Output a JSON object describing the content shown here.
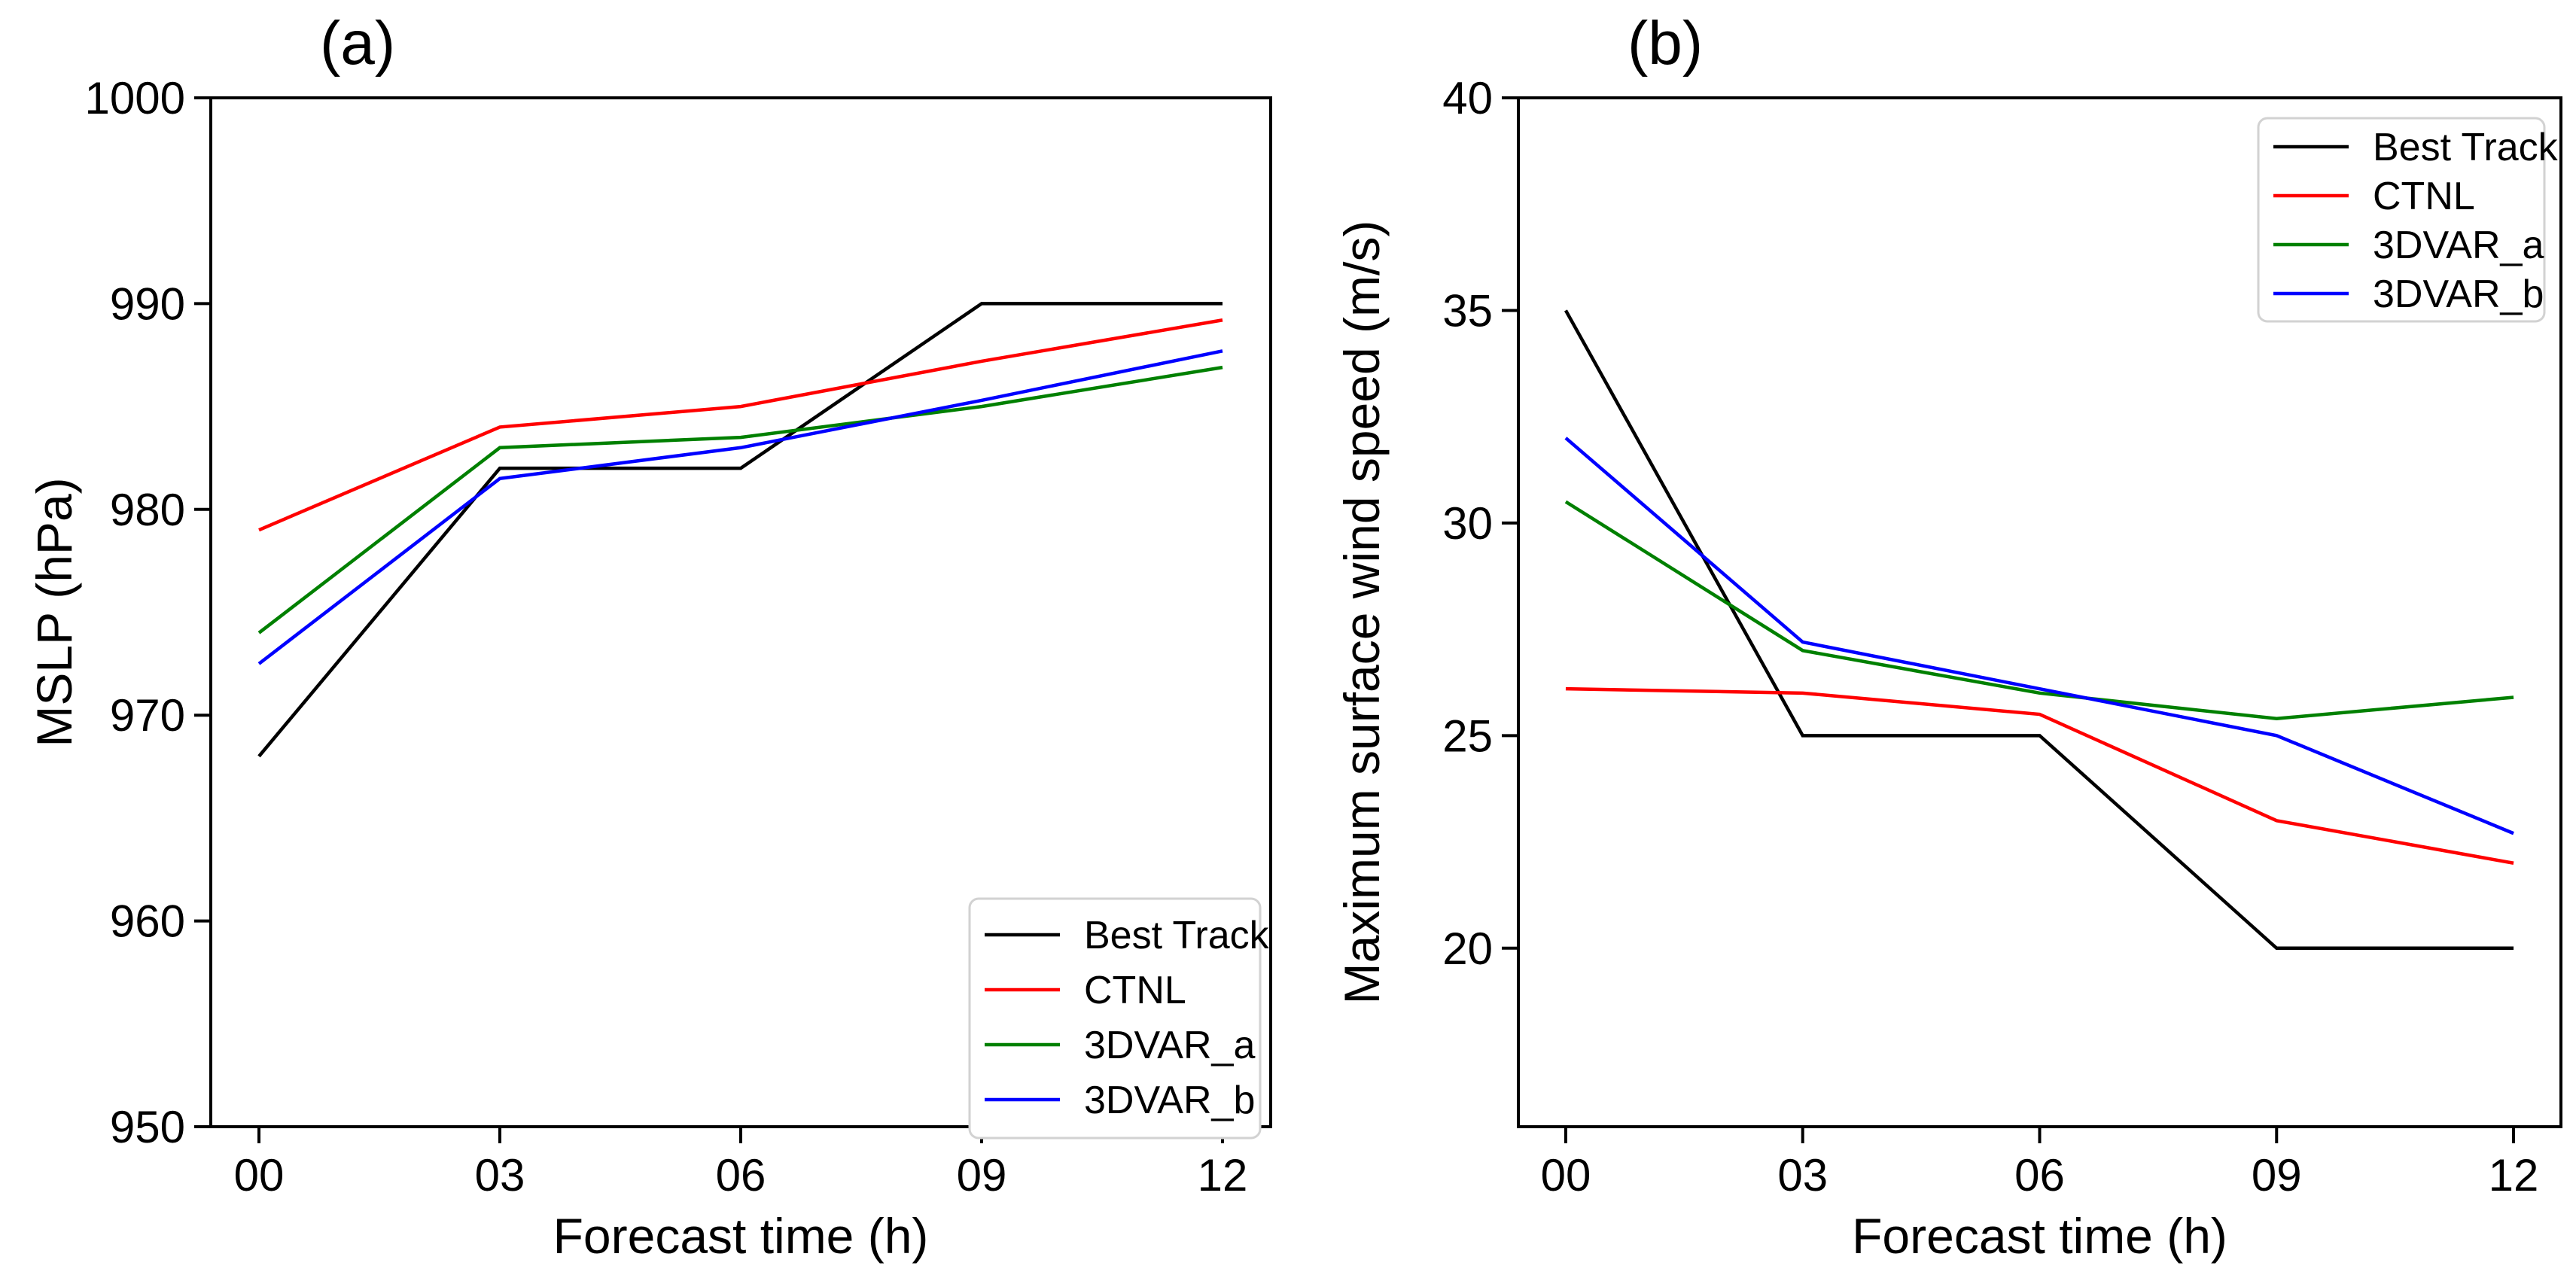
{
  "figure": {
    "background": "#ffffff",
    "colors": {
      "axis": "#000000",
      "legend_border": "#d2d2d2",
      "legend_fill": "#ffffff"
    }
  },
  "chart_data": [
    {
      "id": "a",
      "type": "line",
      "title": "(a)",
      "xlabel": "Forecast time (h)",
      "ylabel": "MSLP (hPa)",
      "x": [
        0,
        3,
        6,
        9,
        12
      ],
      "xtick_labels": [
        "00",
        "03",
        "06",
        "09",
        "12"
      ],
      "yticks": [
        950,
        960,
        970,
        980,
        990,
        1000
      ],
      "ytick_labels": [
        "950",
        "960",
        "970",
        "980",
        "990",
        "1000"
      ],
      "xlim": [
        -0.6,
        12.6
      ],
      "ylim": [
        950,
        1000
      ],
      "grid": false,
      "legend_position": "lower right",
      "series": [
        {
          "name": "Best Track",
          "color": "#000000",
          "values": [
            968,
            982,
            982,
            990,
            990
          ]
        },
        {
          "name": "CTNL",
          "color": "#ff0000",
          "values": [
            979,
            984,
            985,
            987.2,
            989.2
          ]
        },
        {
          "name": "3DVAR_a",
          "color": "#008000",
          "values": [
            974,
            983,
            983.5,
            985,
            986.9
          ]
        },
        {
          "name": "3DVAR_b",
          "color": "#0000ff",
          "values": [
            972.5,
            981.5,
            983,
            985.3,
            987.7
          ]
        }
      ]
    },
    {
      "id": "b",
      "type": "line",
      "title": "(b)",
      "xlabel": "Forecast time (h)",
      "ylabel": "Maximum surface wind speed (m/s)",
      "x": [
        0,
        3,
        6,
        9,
        12
      ],
      "xtick_labels": [
        "00",
        "03",
        "06",
        "09",
        "12"
      ],
      "yticks": [
        20,
        25,
        30,
        35,
        40
      ],
      "ytick_labels": [
        "20",
        "25",
        "30",
        "35",
        "40"
      ],
      "xlim": [
        -0.6,
        12.6
      ],
      "ylim": [
        15.8,
        40
      ],
      "grid": false,
      "legend_position": "upper right",
      "series": [
        {
          "name": "Best Track",
          "color": "#000000",
          "values": [
            35,
            25,
            25,
            20,
            20
          ]
        },
        {
          "name": "CTNL",
          "color": "#ff0000",
          "values": [
            26.1,
            26,
            25.5,
            23,
            22
          ]
        },
        {
          "name": "3DVAR_a",
          "color": "#008000",
          "values": [
            30.5,
            27,
            26,
            25.4,
            25.9
          ]
        },
        {
          "name": "3DVAR_b",
          "color": "#0000ff",
          "values": [
            32,
            27.2,
            26.1,
            25,
            22.7
          ]
        }
      ]
    }
  ]
}
